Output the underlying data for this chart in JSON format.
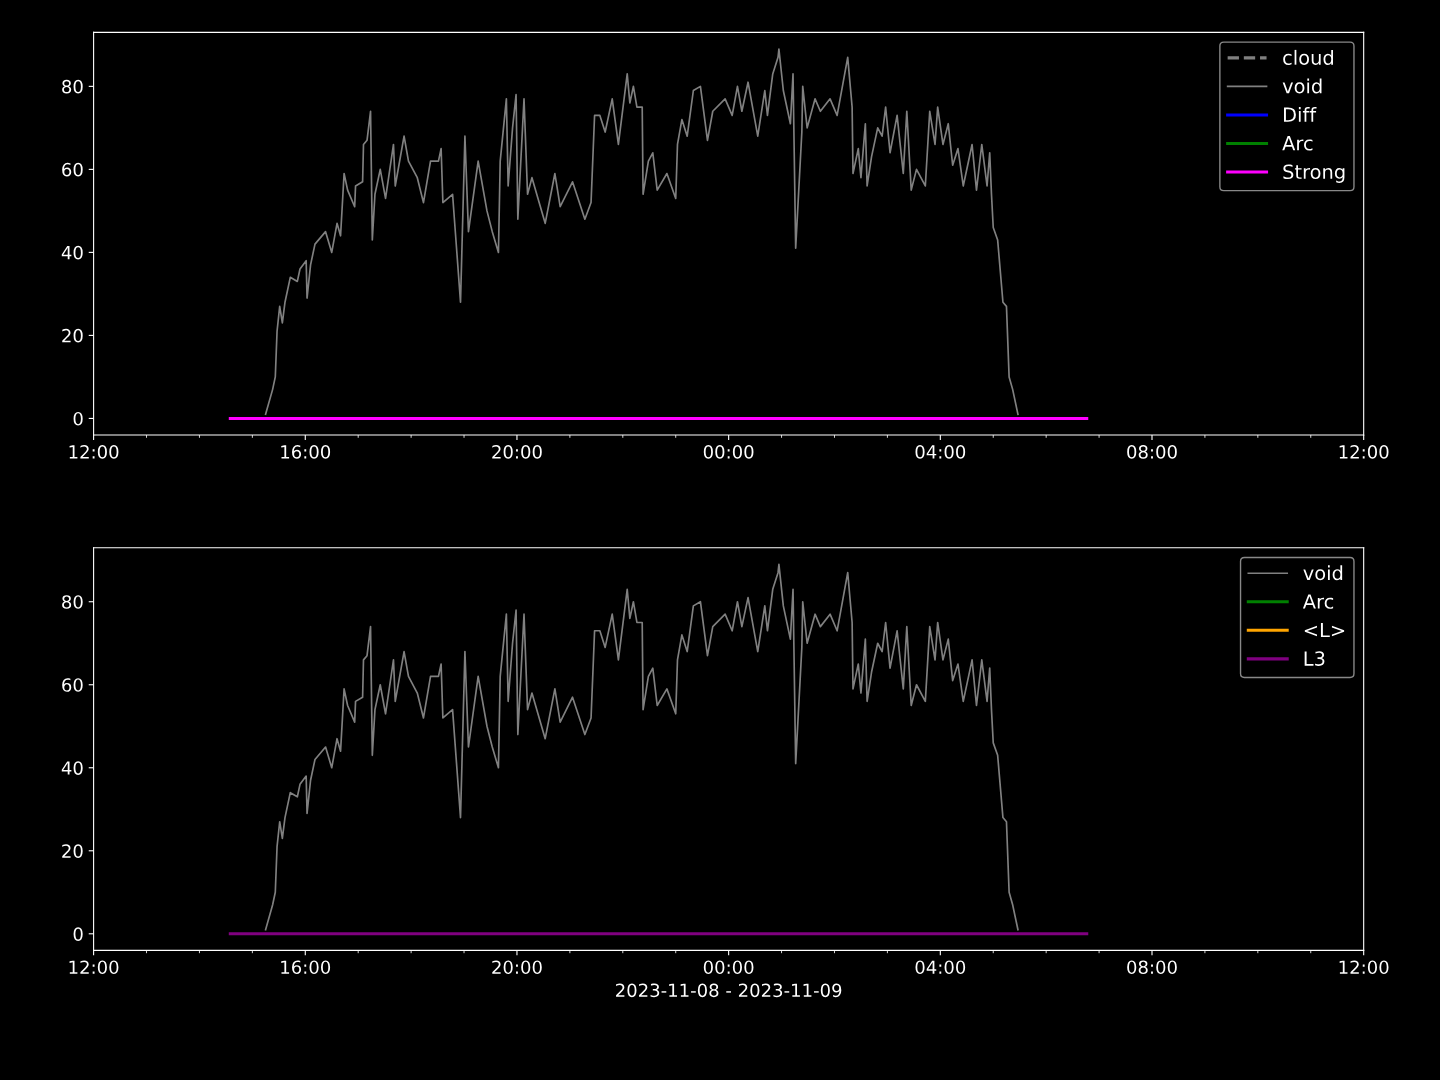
{
  "chart_data": [
    {
      "type": "line",
      "ylim": [
        -4,
        93
      ],
      "yticks": [
        0,
        20,
        40,
        60,
        80
      ],
      "xlim": [
        "2023-11-08T12:00",
        "2023-11-09T12:00"
      ],
      "xticks": [
        {
          "value": "2023-11-08T12:00",
          "label": "12:00"
        },
        {
          "value": "2023-11-08T13:00",
          "label": null
        },
        {
          "value": "2023-11-08T14:00",
          "label": null
        },
        {
          "value": "2023-11-08T15:00",
          "label": null
        },
        {
          "value": "2023-11-08T16:00",
          "label": "16:00"
        },
        {
          "value": "2023-11-08T17:00",
          "label": null
        },
        {
          "value": "2023-11-08T18:00",
          "label": null
        },
        {
          "value": "2023-11-08T19:00",
          "label": null
        },
        {
          "value": "2023-11-08T20:00",
          "label": "20:00"
        },
        {
          "value": "2023-11-08T21:00",
          "label": null
        },
        {
          "value": "2023-11-08T22:00",
          "label": null
        },
        {
          "value": "2023-11-08T23:00",
          "label": null
        },
        {
          "value": "2023-11-09T00:00",
          "label": "00:00"
        },
        {
          "value": "2023-11-09T01:00",
          "label": null
        },
        {
          "value": "2023-11-09T02:00",
          "label": null
        },
        {
          "value": "2023-11-09T03:00",
          "label": null
        },
        {
          "value": "2023-11-09T04:00",
          "label": "04:00"
        },
        {
          "value": "2023-11-09T05:00",
          "label": null
        },
        {
          "value": "2023-11-09T06:00",
          "label": null
        },
        {
          "value": "2023-11-09T07:00",
          "label": null
        },
        {
          "value": "2023-11-09T08:00",
          "label": "08:00"
        },
        {
          "value": "2023-11-09T09:00",
          "label": null
        },
        {
          "value": "2023-11-09T10:00",
          "label": null
        },
        {
          "value": "2023-11-09T11:00",
          "label": null
        },
        {
          "value": "2023-11-09T12:00",
          "label": "12:00"
        }
      ],
      "grid": false,
      "legend": "top right",
      "series": [
        {
          "name": "cloud",
          "color": "#808080",
          "line_style": "dashed"
        },
        {
          "name": "void",
          "color": "#808080",
          "x": [
            "2023-11-08T15:15",
            "2023-11-08T15:23",
            "2023-11-08T15:26",
            "2023-11-08T15:28",
            "2023-11-08T15:31",
            "2023-11-08T15:34",
            "2023-11-08T15:37",
            "2023-11-08T15:43",
            "2023-11-08T15:51",
            "2023-11-08T15:54",
            "2023-11-08T16:01",
            "2023-11-08T16:02",
            "2023-11-08T16:06",
            "2023-11-08T16:11",
            "2023-11-08T16:23",
            "2023-11-08T16:30",
            "2023-11-08T16:36",
            "2023-11-08T16:40",
            "2023-11-08T16:44",
            "2023-11-08T16:48",
            "2023-11-08T16:56",
            "2023-11-08T16:57",
            "2023-11-08T17:05",
            "2023-11-08T17:06",
            "2023-11-08T17:10",
            "2023-11-08T17:14",
            "2023-11-08T17:16",
            "2023-11-08T17:19",
            "2023-11-08T17:25",
            "2023-11-08T17:31",
            "2023-11-08T17:40",
            "2023-11-08T17:42",
            "2023-11-08T17:52",
            "2023-11-08T17:57",
            "2023-11-08T18:07",
            "2023-11-08T18:14",
            "2023-11-08T18:22",
            "2023-11-08T18:31",
            "2023-11-08T18:34",
            "2023-11-08T18:36",
            "2023-11-08T18:47",
            "2023-11-08T18:56",
            "2023-11-08T19:01",
            "2023-11-08T19:05",
            "2023-11-08T19:16",
            "2023-11-08T19:26",
            "2023-11-08T19:32",
            "2023-11-08T19:39",
            "2023-11-08T19:41",
            "2023-11-08T19:48",
            "2023-11-08T19:50",
            "2023-11-08T19:55",
            "2023-11-08T19:59",
            "2023-11-08T20:01",
            "2023-11-08T20:08",
            "2023-11-08T20:12",
            "2023-11-08T20:17",
            "2023-11-08T20:32",
            "2023-11-08T20:43",
            "2023-11-08T20:49",
            "2023-11-08T21:03",
            "2023-11-08T21:17",
            "2023-11-08T21:24",
            "2023-11-08T21:28",
            "2023-11-08T21:34",
            "2023-11-08T21:40",
            "2023-11-08T21:48",
            "2023-11-08T21:55",
            "2023-11-08T22:05",
            "2023-11-08T22:08",
            "2023-11-08T22:12",
            "2023-11-08T22:16",
            "2023-11-08T22:22",
            "2023-11-08T22:23",
            "2023-11-08T22:29",
            "2023-11-08T22:34",
            "2023-11-08T22:39",
            "2023-11-08T22:50",
            "2023-11-08T23:00",
            "2023-11-08T23:02",
            "2023-11-08T23:07",
            "2023-11-08T23:13",
            "2023-11-08T23:20",
            "2023-11-08T23:28",
            "2023-11-08T23:36",
            "2023-11-08T23:42",
            "2023-11-08T23:56",
            "2023-11-09T00:04",
            "2023-11-09T00:10",
            "2023-11-09T00:15",
            "2023-11-09T00:22",
            "2023-11-09T00:33",
            "2023-11-09T00:41",
            "2023-11-09T00:44",
            "2023-11-09T00:50",
            "2023-11-09T00:56",
            "2023-11-09T00:57",
            "2023-11-09T01:02",
            "2023-11-09T01:10",
            "2023-11-09T01:13",
            "2023-11-09T01:16",
            "2023-11-09T01:23",
            "2023-11-09T01:24",
            "2023-11-09T01:29",
            "2023-11-09T01:38",
            "2023-11-09T01:44",
            "2023-11-09T01:55",
            "2023-11-09T02:03",
            "2023-11-09T02:15",
            "2023-11-09T02:20",
            "2023-11-09T02:21",
            "2023-11-09T02:27",
            "2023-11-09T02:30",
            "2023-11-09T02:35",
            "2023-11-09T02:37",
            "2023-11-09T02:42",
            "2023-11-09T02:49",
            "2023-11-09T02:54",
            "2023-11-09T02:58",
            "2023-11-09T03:03",
            "2023-11-09T03:11",
            "2023-11-09T03:18",
            "2023-11-09T03:22",
            "2023-11-09T03:27",
            "2023-11-09T03:33",
            "2023-11-09T03:43",
            "2023-11-09T03:48",
            "2023-11-09T03:54",
            "2023-11-09T03:57",
            "2023-11-09T04:03",
            "2023-11-09T04:09",
            "2023-11-09T04:14",
            "2023-11-09T04:20",
            "2023-11-09T04:26",
            "2023-11-09T04:36",
            "2023-11-09T04:41",
            "2023-11-09T04:47",
            "2023-11-09T04:53",
            "2023-11-09T04:56",
            "2023-11-09T04:58",
            "2023-11-09T05:00",
            "2023-11-09T05:05",
            "2023-11-09T05:11",
            "2023-11-09T05:15",
            "2023-11-09T05:18",
            "2023-11-09T05:22",
            "2023-11-09T05:28"
          ],
          "values": [
            1,
            7,
            10,
            21,
            27,
            23,
            28,
            34,
            33,
            36,
            38,
            29,
            37,
            42,
            45,
            40,
            47,
            44,
            59,
            55,
            51,
            56,
            57,
            66,
            67,
            74,
            43,
            54,
            60,
            53,
            66,
            56,
            68,
            62,
            58,
            52,
            62,
            62,
            65,
            52,
            54,
            28,
            68,
            45,
            62,
            50,
            45,
            40,
            62,
            77,
            56,
            70,
            78,
            48,
            77,
            54,
            58,
            47,
            59,
            51,
            57,
            48,
            52,
            73,
            73,
            69,
            77,
            66,
            83,
            76,
            80,
            75,
            75,
            54,
            62,
            64,
            55,
            59,
            53,
            66,
            72,
            68,
            79,
            80,
            67,
            74,
            77,
            73,
            80,
            74,
            81,
            68,
            79,
            73,
            83,
            87,
            89,
            79,
            71,
            83,
            41,
            69,
            80,
            70,
            77,
            74,
            77,
            73,
            87,
            75,
            59,
            65,
            58,
            71,
            56,
            63,
            70,
            68,
            75,
            64,
            73,
            59,
            74,
            55,
            60,
            56,
            74,
            66,
            75,
            66,
            71,
            61,
            65,
            56,
            66,
            55,
            66,
            56,
            64,
            54,
            46,
            43,
            28,
            27,
            10,
            7,
            1
          ]
        },
        {
          "name": "Diff",
          "color": "#0000ff"
        },
        {
          "name": "Arc",
          "color": "#008000"
        },
        {
          "name": "Strong",
          "color": "#ff00ff",
          "x": [
            "2023-11-08T14:35",
            "2023-11-09T06:46"
          ],
          "values": [
            0,
            0
          ]
        }
      ]
    },
    {
      "type": "line",
      "ylim": [
        -4,
        93
      ],
      "yticks": [
        0,
        20,
        40,
        60,
        80
      ],
      "xlim": [
        "2023-11-08T12:00",
        "2023-11-09T12:00"
      ],
      "xlabel": "2023-11-08 - 2023-11-09",
      "xticks": [
        {
          "value": "2023-11-08T12:00",
          "label": "12:00"
        },
        {
          "value": "2023-11-08T13:00",
          "label": null
        },
        {
          "value": "2023-11-08T14:00",
          "label": null
        },
        {
          "value": "2023-11-08T15:00",
          "label": null
        },
        {
          "value": "2023-11-08T16:00",
          "label": "16:00"
        },
        {
          "value": "2023-11-08T17:00",
          "label": null
        },
        {
          "value": "2023-11-08T18:00",
          "label": null
        },
        {
          "value": "2023-11-08T19:00",
          "label": null
        },
        {
          "value": "2023-11-08T20:00",
          "label": "20:00"
        },
        {
          "value": "2023-11-08T21:00",
          "label": null
        },
        {
          "value": "2023-11-08T22:00",
          "label": null
        },
        {
          "value": "2023-11-08T23:00",
          "label": null
        },
        {
          "value": "2023-11-09T00:00",
          "label": "00:00"
        },
        {
          "value": "2023-11-09T01:00",
          "label": null
        },
        {
          "value": "2023-11-09T02:00",
          "label": null
        },
        {
          "value": "2023-11-09T03:00",
          "label": null
        },
        {
          "value": "2023-11-09T04:00",
          "label": "04:00"
        },
        {
          "value": "2023-11-09T05:00",
          "label": null
        },
        {
          "value": "2023-11-09T06:00",
          "label": null
        },
        {
          "value": "2023-11-09T07:00",
          "label": null
        },
        {
          "value": "2023-11-09T08:00",
          "label": "08:00"
        },
        {
          "value": "2023-11-09T09:00",
          "label": null
        },
        {
          "value": "2023-11-09T10:00",
          "label": null
        },
        {
          "value": "2023-11-09T11:00",
          "label": null
        },
        {
          "value": "2023-11-09T12:00",
          "label": "12:00"
        }
      ],
      "grid": false,
      "legend": "top right",
      "series": [
        {
          "name": "void",
          "color": "#808080",
          "x": [
            "2023-11-08T15:15",
            "2023-11-08T15:23",
            "2023-11-08T15:26",
            "2023-11-08T15:28",
            "2023-11-08T15:31",
            "2023-11-08T15:34",
            "2023-11-08T15:37",
            "2023-11-08T15:43",
            "2023-11-08T15:51",
            "2023-11-08T15:54",
            "2023-11-08T16:01",
            "2023-11-08T16:02",
            "2023-11-08T16:06",
            "2023-11-08T16:11",
            "2023-11-08T16:23",
            "2023-11-08T16:30",
            "2023-11-08T16:36",
            "2023-11-08T16:40",
            "2023-11-08T16:44",
            "2023-11-08T16:48",
            "2023-11-08T16:56",
            "2023-11-08T16:57",
            "2023-11-08T17:05",
            "2023-11-08T17:06",
            "2023-11-08T17:10",
            "2023-11-08T17:14",
            "2023-11-08T17:16",
            "2023-11-08T17:19",
            "2023-11-08T17:25",
            "2023-11-08T17:31",
            "2023-11-08T17:40",
            "2023-11-08T17:42",
            "2023-11-08T17:52",
            "2023-11-08T17:57",
            "2023-11-08T18:07",
            "2023-11-08T18:14",
            "2023-11-08T18:22",
            "2023-11-08T18:31",
            "2023-11-08T18:34",
            "2023-11-08T18:36",
            "2023-11-08T18:47",
            "2023-11-08T18:56",
            "2023-11-08T19:01",
            "2023-11-08T19:05",
            "2023-11-08T19:16",
            "2023-11-08T19:26",
            "2023-11-08T19:32",
            "2023-11-08T19:39",
            "2023-11-08T19:41",
            "2023-11-08T19:48",
            "2023-11-08T19:50",
            "2023-11-08T19:55",
            "2023-11-08T19:59",
            "2023-11-08T20:01",
            "2023-11-08T20:08",
            "2023-11-08T20:12",
            "2023-11-08T20:17",
            "2023-11-08T20:32",
            "2023-11-08T20:43",
            "2023-11-08T20:49",
            "2023-11-08T21:03",
            "2023-11-08T21:17",
            "2023-11-08T21:24",
            "2023-11-08T21:28",
            "2023-11-08T21:34",
            "2023-11-08T21:40",
            "2023-11-08T21:48",
            "2023-11-08T21:55",
            "2023-11-08T22:05",
            "2023-11-08T22:08",
            "2023-11-08T22:12",
            "2023-11-08T22:16",
            "2023-11-08T22:22",
            "2023-11-08T22:23",
            "2023-11-08T22:29",
            "2023-11-08T22:34",
            "2023-11-08T22:39",
            "2023-11-08T22:50",
            "2023-11-08T23:00",
            "2023-11-08T23:02",
            "2023-11-08T23:07",
            "2023-11-08T23:13",
            "2023-11-08T23:20",
            "2023-11-08T23:28",
            "2023-11-08T23:36",
            "2023-11-08T23:42",
            "2023-11-08T23:56",
            "2023-11-09T00:04",
            "2023-11-09T00:10",
            "2023-11-09T00:15",
            "2023-11-09T00:22",
            "2023-11-09T00:33",
            "2023-11-09T00:41",
            "2023-11-09T00:44",
            "2023-11-09T00:50",
            "2023-11-09T00:56",
            "2023-11-09T00:57",
            "2023-11-09T01:02",
            "2023-11-09T01:10",
            "2023-11-09T01:13",
            "2023-11-09T01:16",
            "2023-11-09T01:23",
            "2023-11-09T01:24",
            "2023-11-09T01:29",
            "2023-11-09T01:38",
            "2023-11-09T01:44",
            "2023-11-09T01:55",
            "2023-11-09T02:03",
            "2023-11-09T02:15",
            "2023-11-09T02:20",
            "2023-11-09T02:21",
            "2023-11-09T02:27",
            "2023-11-09T02:30",
            "2023-11-09T02:35",
            "2023-11-09T02:37",
            "2023-11-09T02:42",
            "2023-11-09T02:49",
            "2023-11-09T02:54",
            "2023-11-09T02:58",
            "2023-11-09T03:03",
            "2023-11-09T03:11",
            "2023-11-09T03:18",
            "2023-11-09T03:22",
            "2023-11-09T03:27",
            "2023-11-09T03:33",
            "2023-11-09T03:43",
            "2023-11-09T03:48",
            "2023-11-09T03:54",
            "2023-11-09T03:57",
            "2023-11-09T04:03",
            "2023-11-09T04:09",
            "2023-11-09T04:14",
            "2023-11-09T04:20",
            "2023-11-09T04:26",
            "2023-11-09T04:36",
            "2023-11-09T04:41",
            "2023-11-09T04:47",
            "2023-11-09T04:53",
            "2023-11-09T04:56",
            "2023-11-09T04:58",
            "2023-11-09T05:00",
            "2023-11-09T05:05",
            "2023-11-09T05:11",
            "2023-11-09T05:15",
            "2023-11-09T05:18",
            "2023-11-09T05:22",
            "2023-11-09T05:28"
          ],
          "values": [
            1,
            7,
            10,
            21,
            27,
            23,
            28,
            34,
            33,
            36,
            38,
            29,
            37,
            42,
            45,
            40,
            47,
            44,
            59,
            55,
            51,
            56,
            57,
            66,
            67,
            74,
            43,
            54,
            60,
            53,
            66,
            56,
            68,
            62,
            58,
            52,
            62,
            62,
            65,
            52,
            54,
            28,
            68,
            45,
            62,
            50,
            45,
            40,
            62,
            77,
            56,
            70,
            78,
            48,
            77,
            54,
            58,
            47,
            59,
            51,
            57,
            48,
            52,
            73,
            73,
            69,
            77,
            66,
            83,
            76,
            80,
            75,
            75,
            54,
            62,
            64,
            55,
            59,
            53,
            66,
            72,
            68,
            79,
            80,
            67,
            74,
            77,
            73,
            80,
            74,
            81,
            68,
            79,
            73,
            83,
            87,
            89,
            79,
            71,
            83,
            41,
            69,
            80,
            70,
            77,
            74,
            77,
            73,
            87,
            75,
            59,
            65,
            58,
            71,
            56,
            63,
            70,
            68,
            75,
            64,
            73,
            59,
            74,
            55,
            60,
            56,
            74,
            66,
            75,
            66,
            71,
            61,
            65,
            56,
            66,
            55,
            66,
            56,
            64,
            54,
            46,
            43,
            28,
            27,
            10,
            7,
            1
          ]
        },
        {
          "name": "Arc",
          "color": "#008000"
        },
        {
          "name": "<L>",
          "color": "#ffa500"
        },
        {
          "name": "L3",
          "color": "#800080",
          "x": [
            "2023-11-08T14:35",
            "2023-11-09T06:46"
          ],
          "values": [
            0,
            0
          ]
        }
      ]
    }
  ]
}
